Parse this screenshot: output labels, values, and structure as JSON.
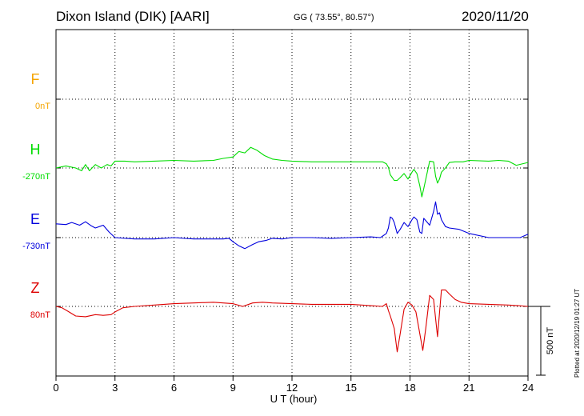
{
  "header": {
    "station": "Dixon Island (DIK)  [AARI]",
    "coords": "GG ( 73.55°,  80.57°)",
    "date": "2020/11/20"
  },
  "footer_note": "Plotted at 2020/12/19 01:27 UT",
  "chart_data": {
    "type": "line",
    "xlabel": "U T (hour)",
    "xlim": [
      0,
      24
    ],
    "x_ticks": [
      "0",
      "3",
      "6",
      "9",
      "12",
      "15",
      "18",
      "21",
      "24"
    ],
    "y_units": "nT",
    "scale_bar": {
      "label": "500 nT",
      "value": 500
    },
    "colors": {
      "F": "#f5a500",
      "H": "#00dd00",
      "E": "#0000dd",
      "Z": "#dd0000"
    },
    "series": [
      {
        "name": "F",
        "baseline_label": "0nT",
        "baseline": 0,
        "color": "#f5a500",
        "x": [],
        "y": []
      },
      {
        "name": "H",
        "baseline_label": "-270nT",
        "baseline": -270,
        "color": "#00dd00",
        "x": [
          0,
          0.5,
          1.0,
          1.3,
          1.5,
          1.7,
          2.0,
          2.3,
          2.6,
          2.8,
          3.0,
          3.5,
          4.0,
          5.0,
          6.0,
          7.0,
          8.0,
          8.5,
          9.0,
          9.3,
          9.6,
          9.9,
          10.2,
          10.6,
          11.0,
          11.5,
          12.0,
          13.0,
          14.0,
          15.0,
          16.0,
          16.6,
          16.8,
          16.9,
          17.0,
          17.1,
          17.2,
          17.35,
          17.5,
          17.7,
          17.9,
          18.1,
          18.2,
          18.35,
          18.5,
          18.6,
          18.7,
          19.0,
          19.2,
          19.3,
          19.4,
          19.5,
          19.6,
          19.8,
          20.0,
          20.3,
          20.7,
          21.0,
          22.0,
          22.5,
          23.0,
          23.4,
          24.0
        ],
        "y": [
          -270,
          -255,
          -270,
          -290,
          -245,
          -290,
          -245,
          -270,
          -245,
          -255,
          -220,
          -220,
          -225,
          -220,
          -215,
          -220,
          -215,
          -200,
          -190,
          -150,
          -160,
          -120,
          -140,
          -180,
          -205,
          -215,
          -220,
          -225,
          -225,
          -225,
          -225,
          -225,
          -240,
          -265,
          -320,
          -340,
          -360,
          -360,
          -340,
          -310,
          -350,
          -300,
          -280,
          -310,
          -400,
          -480,
          -420,
          -220,
          -225,
          -330,
          -380,
          -350,
          -300,
          -270,
          -230,
          -225,
          -225,
          -215,
          -220,
          -215,
          -220,
          -250,
          -230
        ]
      },
      {
        "name": "E",
        "baseline_label": "-730nT",
        "baseline": -730,
        "color": "#0000dd",
        "x": [
          0,
          0.5,
          0.8,
          1.2,
          1.5,
          1.8,
          2.0,
          2.4,
          2.7,
          3.0,
          4.0,
          5.0,
          6.0,
          7.0,
          8.0,
          8.5,
          8.8,
          9.0,
          9.3,
          9.6,
          10.0,
          10.3,
          10.7,
          11.0,
          11.5,
          12.0,
          13.0,
          14.0,
          15.0,
          16.0,
          16.5,
          16.8,
          16.9,
          17.0,
          17.1,
          17.2,
          17.35,
          17.5,
          17.7,
          17.9,
          18.1,
          18.2,
          18.35,
          18.5,
          18.6,
          18.7,
          19.0,
          19.2,
          19.3,
          19.4,
          19.5,
          19.6,
          19.8,
          20.0,
          20.5,
          21.0,
          22.0,
          23.0,
          23.6,
          24.0
        ],
        "y": [
          -630,
          -635,
          -620,
          -640,
          -615,
          -645,
          -660,
          -640,
          -690,
          -730,
          -740,
          -740,
          -730,
          -740,
          -740,
          -740,
          -735,
          -760,
          -790,
          -810,
          -780,
          -760,
          -750,
          -735,
          -740,
          -730,
          -730,
          -735,
          -730,
          -725,
          -730,
          -700,
          -660,
          -580,
          -590,
          -620,
          -700,
          -670,
          -620,
          -650,
          -600,
          -580,
          -600,
          -690,
          -700,
          -590,
          -640,
          -540,
          -470,
          -560,
          -550,
          -600,
          -650,
          -660,
          -670,
          -700,
          -730,
          -730,
          -730,
          -705
        ]
      },
      {
        "name": "Z",
        "baseline_label": "80nT",
        "baseline": 80,
        "color": "#dd0000",
        "x": [
          0,
          0.3,
          0.6,
          1.0,
          1.5,
          2.0,
          2.4,
          2.8,
          3.0,
          3.4,
          4.0,
          5.0,
          6.0,
          7.0,
          8.0,
          9.0,
          9.5,
          10.0,
          10.5,
          11.0,
          12.0,
          13.0,
          14.0,
          15.0,
          16.0,
          16.6,
          16.8,
          16.9,
          17.0,
          17.2,
          17.35,
          17.5,
          17.7,
          17.9,
          18.1,
          18.3,
          18.5,
          18.65,
          18.8,
          19.0,
          19.2,
          19.4,
          19.6,
          19.8,
          20.0,
          20.3,
          20.6,
          21.0,
          22.0,
          23.0,
          23.5,
          24.0
        ],
        "y": [
          80,
          70,
          45,
          10,
          5,
          20,
          15,
          20,
          40,
          70,
          80,
          90,
          100,
          105,
          110,
          100,
          80,
          105,
          110,
          105,
          100,
          95,
          95,
          95,
          85,
          80,
          100,
          50,
          10,
          -80,
          -250,
          -120,
          60,
          110,
          90,
          40,
          -120,
          -240,
          -80,
          160,
          130,
          -140,
          200,
          200,
          170,
          130,
          110,
          100,
          95,
          90,
          85,
          80
        ]
      }
    ]
  }
}
